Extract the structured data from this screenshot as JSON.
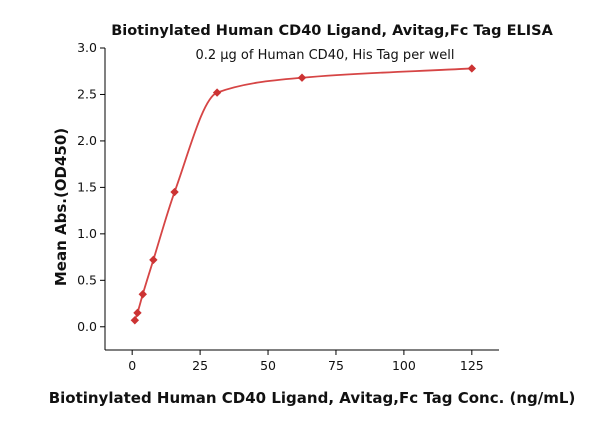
{
  "chart_data": {
    "type": "scatter",
    "title": "Biotinylated Human CD40 Ligand, Avitag,Fc Tag ELISA",
    "subtitle": "0.2 μg of Human CD40, His Tag per well",
    "xlabel": "Biotinylated Human CD40 Ligand, Avitag,Fc Tag Conc. (ng/mL)",
    "ylabel": "Mean Abs.(OD450)",
    "xlim": [
      -10,
      135
    ],
    "ylim": [
      -0.25,
      3.0
    ],
    "x_ticks": [
      0,
      25,
      50,
      75,
      100,
      125
    ],
    "y_ticks": [
      0.0,
      0.5,
      1.0,
      1.5,
      2.0,
      2.5,
      3.0
    ],
    "x_tick_labels": [
      "0",
      "25",
      "50",
      "75",
      "100",
      "125"
    ],
    "y_tick_labels": [
      "0.0",
      "0.5",
      "1.0",
      "1.5",
      "2.0",
      "2.5",
      "3.0"
    ],
    "grid": false,
    "series": [
      {
        "x": [
          0.98,
          1.95,
          3.9,
          7.8,
          15.6,
          31.25,
          62.5,
          125
        ],
        "values": [
          0.07,
          0.15,
          0.35,
          0.72,
          1.45,
          2.52,
          2.68,
          2.78
        ],
        "marker": "diamond",
        "color": "#cc3333",
        "fit_curve": true
      }
    ],
    "fit_color": "#d64545"
  }
}
